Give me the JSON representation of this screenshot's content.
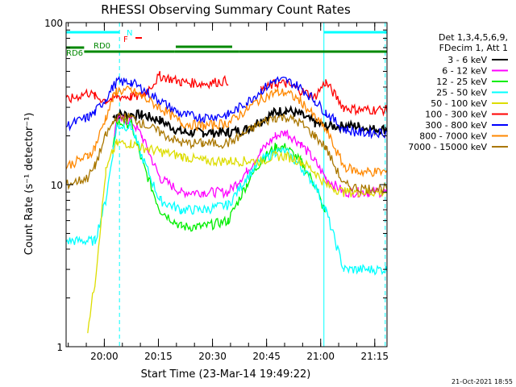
{
  "colors": {
    "background": "#ffffff",
    "axis": "#000000",
    "s1": "#000000",
    "s2": "#ff00ff",
    "s3": "#00ee00",
    "s4": "#00ffff",
    "s5": "#dddd00",
    "s6": "#ff0000",
    "s7": "#0000ff",
    "s8": "#ff8800",
    "s9": "#aa7700",
    "attenuator": "#00ffff",
    "flag_n": "#00ffff",
    "flag_f": "#ff0000",
    "decimation": "#008800"
  },
  "footer": {
    "date": "21-Oct-2021 18:55"
  },
  "chart_data": {
    "type": "line",
    "title": "RHESSI Observing Summary Count Rates",
    "xlabel": "Start Time (23-Mar-14 19:49:22)",
    "ylabel": "Count Rate (s⁻¹ detector⁻¹)",
    "x_unit": "minutes after 19:49:22",
    "xlim": [
      0,
      89
    ],
    "ylim": [
      1,
      100
    ],
    "yscale": "log",
    "x_ticks": [
      {
        "at": 10.6,
        "label": "20:00"
      },
      {
        "at": 25.6,
        "label": "20:15"
      },
      {
        "at": 40.6,
        "label": "20:30"
      },
      {
        "at": 55.6,
        "label": "20:45"
      },
      {
        "at": 70.6,
        "label": "21:00"
      },
      {
        "at": 85.6,
        "label": "21:15"
      }
    ],
    "y_ticks": [
      {
        "at": 1,
        "label": "1"
      },
      {
        "at": 10,
        "label": "10"
      },
      {
        "at": 100,
        "label": "100"
      }
    ],
    "legend_title": [
      "Det 1,3,4,5,6,9,",
      "FDecim 1, Att 1"
    ],
    "legend_placement": "right",
    "series": [
      {
        "name": "3 - 6 keV",
        "x": [
          0,
          6,
          8,
          11,
          13,
          14,
          18,
          21,
          26,
          32,
          38,
          45,
          50,
          54,
          58,
          61,
          65,
          69,
          72,
          77,
          81,
          84,
          89
        ],
        "y": [
          null,
          null,
          null,
          null,
          26,
          27,
          27,
          27,
          25,
          21,
          21,
          21,
          22,
          25,
          28,
          29,
          27,
          24,
          23,
          23,
          23,
          22,
          22
        ]
      },
      {
        "name": "6 - 12 keV",
        "x": [
          0,
          6,
          8,
          11,
          13,
          14,
          18,
          21,
          26,
          32,
          38,
          45,
          50,
          54,
          58,
          61,
          65,
          69,
          72,
          77,
          81,
          84,
          89
        ],
        "y": [
          null,
          null,
          null,
          null,
          17,
          25,
          25,
          20,
          11,
          9,
          9,
          9,
          12,
          16,
          20,
          21,
          18,
          14,
          11,
          9,
          9,
          9,
          9
        ]
      },
      {
        "name": "12 - 25 keV",
        "x": [
          0,
          6,
          8,
          11,
          13,
          14,
          18,
          21,
          26,
          32,
          38,
          45,
          50,
          54,
          58,
          61,
          65,
          69,
          72,
          77,
          81,
          84,
          89
        ],
        "y": [
          null,
          null,
          null,
          null,
          16,
          24,
          24,
          14,
          7,
          5.5,
          5.5,
          6,
          10,
          14,
          17,
          17,
          14,
          10,
          6.5,
          null,
          null,
          null,
          null
        ]
      },
      {
        "name": "25 - 50 keV",
        "x": [
          0,
          6,
          8,
          11,
          13,
          14,
          18,
          21,
          26,
          32,
          38,
          45,
          50,
          54,
          58,
          61,
          65,
          69,
          72,
          77,
          81,
          84,
          89
        ],
        "y": [
          4.5,
          4.5,
          4.5,
          8,
          16,
          23,
          23,
          15,
          8,
          7,
          7,
          7.5,
          11,
          14,
          16,
          16,
          13,
          10,
          7,
          3,
          3,
          3,
          3
        ]
      },
      {
        "name": "50 - 100 keV",
        "x": [
          0,
          6,
          8,
          11,
          13,
          14,
          18,
          21,
          26,
          32,
          38,
          45,
          50,
          54,
          58,
          61,
          65,
          69,
          72,
          77,
          81,
          84,
          89
        ],
        "y": [
          null,
          1.3,
          2.5,
          12,
          16,
          18,
          18,
          17,
          16,
          15,
          14,
          14,
          14,
          14,
          15,
          15,
          14,
          12,
          10,
          9,
          9,
          9,
          9
        ]
      },
      {
        "name": "100 - 300 keV",
        "x": [
          0,
          6,
          8,
          11,
          13,
          14,
          18,
          21,
          26,
          32,
          38,
          45,
          50,
          54,
          58,
          61,
          65,
          69,
          72,
          77,
          81,
          84,
          89
        ],
        "y": [
          33,
          37,
          35,
          33,
          34,
          35,
          35,
          35,
          47,
          43,
          42,
          44,
          null,
          38,
          42,
          42,
          38,
          35,
          43,
          30,
          29,
          29,
          29
        ]
      },
      {
        "name": "300 - 800 keV",
        "x": [
          0,
          6,
          8,
          11,
          13,
          14,
          18,
          21,
          26,
          32,
          38,
          45,
          50,
          54,
          58,
          61,
          65,
          69,
          72,
          77,
          81,
          84,
          89
        ],
        "y": [
          23,
          26,
          28,
          34,
          40,
          43,
          43,
          39,
          33,
          27,
          26,
          27,
          32,
          38,
          44,
          44,
          40,
          33,
          28,
          22,
          21,
          21,
          21
        ]
      },
      {
        "name": "800 - 7000 keV",
        "x": [
          0,
          6,
          8,
          11,
          13,
          14,
          18,
          21,
          26,
          32,
          38,
          45,
          50,
          54,
          58,
          61,
          65,
          69,
          72,
          77,
          81,
          84,
          89
        ],
        "y": [
          13,
          15,
          17,
          26,
          34,
          38,
          38,
          35,
          30,
          24,
          23,
          24,
          29,
          34,
          37,
          37,
          33,
          26,
          22,
          13,
          12,
          12,
          12
        ]
      },
      {
        "name": "7000 - 15000 keV",
        "x": [
          0,
          6,
          8,
          11,
          13,
          14,
          18,
          21,
          26,
          32,
          38,
          45,
          50,
          54,
          58,
          61,
          65,
          69,
          72,
          77,
          81,
          84,
          89
        ],
        "y": [
          10,
          11,
          13,
          20,
          24,
          26,
          26,
          24,
          21,
          18,
          18,
          18,
          21,
          24,
          26,
          26,
          24,
          20,
          17,
          10,
          9.5,
          9.5,
          9.5
        ]
      }
    ],
    "annotations": {
      "attenuator_label": "",
      "n_label": "N",
      "f_label": "F",
      "rd0_label": "RD0",
      "rd6_label": "RD6"
    },
    "attenuator_intervals": [
      [
        0,
        14.8
      ],
      [
        71.5,
        89
      ]
    ],
    "decimation_bars": [
      [
        0,
        5
      ],
      [
        5,
        30
      ],
      [
        30,
        48
      ],
      [
        48,
        71
      ],
      [
        71,
        89
      ]
    ],
    "vertical_lines": [
      14.8,
      71.5,
      88.5
    ]
  }
}
